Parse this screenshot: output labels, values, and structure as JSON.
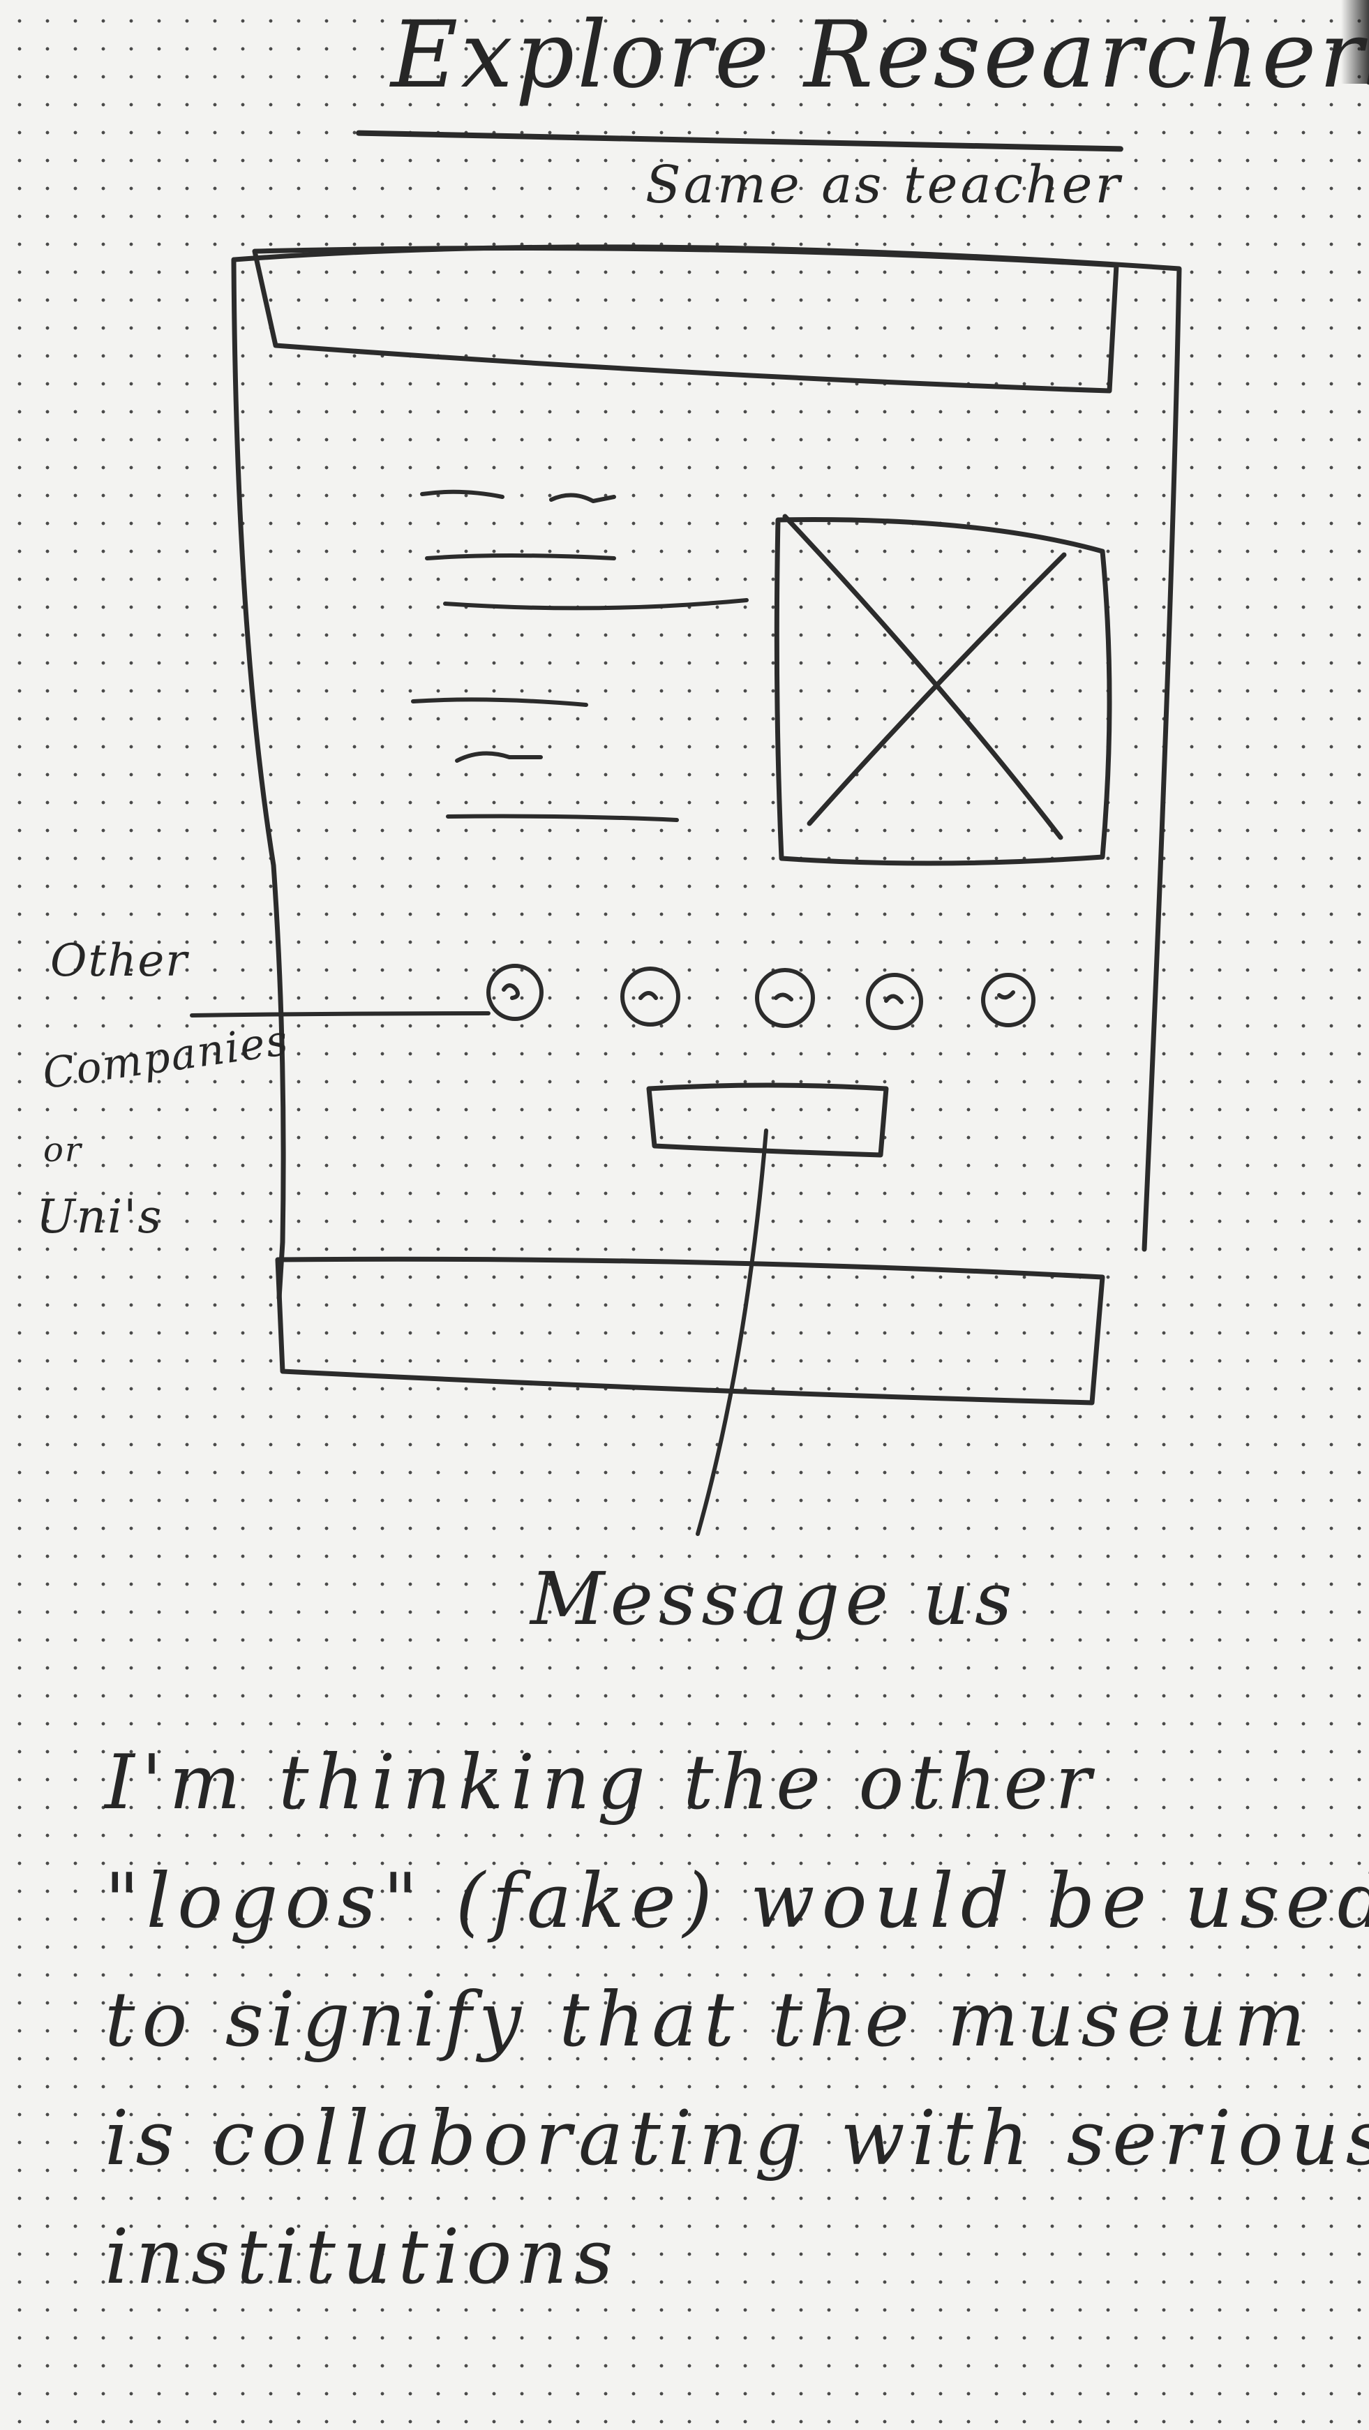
{
  "title": "Explore Researchers",
  "subtitle": "Same as teacher",
  "annotations": {
    "logos_label_lines": [
      "Other",
      "Companies",
      "or",
      "Uni's"
    ],
    "button_label": "Message us"
  },
  "note": {
    "lines": [
      "I'm thinking the other",
      "\"logos\" (fake) would be used",
      "to signify that the museum",
      "is collaborating with serious",
      "institutions"
    ]
  },
  "wireframe": {
    "logo_count": 5,
    "placeholder_image_icon": "x-cross-placeholder-icon"
  }
}
